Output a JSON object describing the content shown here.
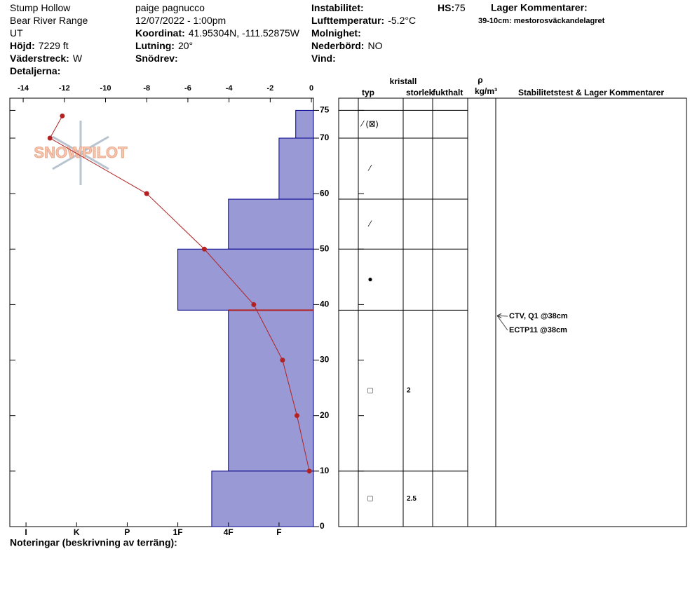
{
  "header": {
    "columns": [
      [
        {
          "value": "Stump Hollow"
        },
        {
          "value": "Bear River Range"
        },
        {
          "value": "UT"
        },
        {
          "label": "Höjd:",
          "value": "7229 ft"
        },
        {
          "label": "Väderstreck:",
          "value": "W"
        },
        {
          "label": "Detaljerna:"
        }
      ],
      [
        {
          "value": "paige pagnucco"
        },
        {
          "value": "12/07/2022 - 1:00pm"
        },
        {
          "label": "Koordinat:",
          "value": "41.95304N, -111.52875W"
        },
        {
          "label": "Lutning:",
          "value": "20°"
        },
        {
          "label": "Snödrev:"
        }
      ],
      [
        {
          "label": "Instabilitet:"
        },
        {
          "label": "Lufttemperatur:",
          "value": "-5.2°C"
        },
        {
          "label": "Molnighet:"
        },
        {
          "label": "Nederbörd:",
          "value": "NO"
        },
        {
          "label": "Vind:"
        }
      ]
    ],
    "hs": {
      "label": "HS:",
      "value": "75"
    },
    "layer_comments_title": "Lager Kommentarer:",
    "layer_comments": [
      {
        "label": "39-10cm:",
        "value": "mestorosväckandelagret"
      }
    ]
  },
  "chart_data": {
    "type": "profile",
    "logo": "SNOWPILOT",
    "ylim": [
      0,
      77.2
    ],
    "yticks": [
      0,
      10,
      20,
      30,
      40,
      50,
      60,
      70,
      75
    ],
    "xlim": [
      -14.65,
      0.1
    ],
    "xticks": [
      -14,
      -12,
      -10,
      -8,
      -6,
      -4,
      -2,
      0
    ],
    "hardness_lim": [
      6.32,
      0.32
    ],
    "hardness_ticks": [
      {
        "value": 6,
        "label": "I"
      },
      {
        "value": 5,
        "label": "K"
      },
      {
        "value": 4,
        "label": "P"
      },
      {
        "value": 3,
        "label": "1F"
      },
      {
        "value": 2,
        "label": "4F"
      },
      {
        "value": 1,
        "label": "F"
      }
    ],
    "layer_color": "#9999d6",
    "temperature": {
      "color": "#b22222",
      "heights": [
        74,
        70,
        60,
        50,
        40,
        30,
        20,
        10
      ],
      "values": [
        -12.1,
        -12.7,
        -8,
        -5.2,
        -2.8,
        -1.4,
        -0.7,
        -0.1
      ]
    },
    "layers": [
      {
        "top": 75,
        "bottom": 70,
        "hardness": 0.67,
        "grain": "⁄ (⊠)"
      },
      {
        "top": 70,
        "bottom": 59,
        "hardness": 1,
        "grain": "⁄"
      },
      {
        "top": 59,
        "bottom": 50,
        "hardness": 2,
        "grain": "⁄"
      },
      {
        "top": 50,
        "bottom": 39,
        "hardness": 3,
        "grain": "●"
      },
      {
        "top": 39,
        "bottom": 10,
        "hardness": 2,
        "grain": "□",
        "size": "2",
        "critical": true
      },
      {
        "top": 10,
        "bottom": 0,
        "hardness": 2.33,
        "grain": "□",
        "size": "2.5"
      }
    ],
    "columns": {
      "type": "typ",
      "crystal": "kristall",
      "size": "storlek",
      "moisture": "fukthalt",
      "rho": "ρ",
      "density_unit": "kg/m³",
      "tests": "Stabilitetstest & Lager Kommentarer"
    },
    "stability_tests": [
      {
        "text": "CTV, Q1 @38cm",
        "height": 38
      },
      {
        "text": "ECTP11 @38cm",
        "height": 38
      }
    ],
    "notes_title": "Noteringar (beskrivning av terräng):"
  }
}
